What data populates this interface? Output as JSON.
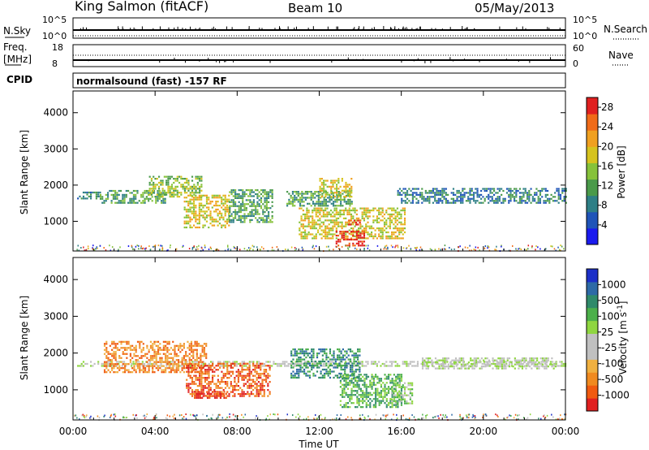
{
  "header": {
    "station": "King Salmon (fitACF)",
    "beam": "Beam 10",
    "date": "05/May/2013"
  },
  "strip_panels": {
    "noise": {
      "left_label": "N.Sky",
      "right_label": "N.Search",
      "left_ticks": [
        "10^5",
        "10^0"
      ],
      "right_ticks": [
        "10^5",
        "10^0"
      ]
    },
    "freq": {
      "left_label_1": "Freq.",
      "left_label_2": "[MHz]",
      "right_label": "Nave",
      "left_ticks": [
        "18",
        "8"
      ],
      "right_ticks": [
        "60",
        "0"
      ]
    },
    "cpid": {
      "label": "CPID",
      "text": "normalsound (fast) -157 RF"
    }
  },
  "x_axis": {
    "label": "Time UT",
    "ticks": [
      "00:00",
      "04:00",
      "08:00",
      "12:00",
      "16:00",
      "20:00",
      "00:00"
    ]
  },
  "chart_data": [
    {
      "type": "heatmap",
      "title": "Power",
      "ylabel": "Slant Range [km]",
      "ylim": [
        180,
        4600
      ],
      "yticks": [
        "1000",
        "2000",
        "3000",
        "4000"
      ],
      "xlim": [
        0,
        24
      ],
      "colorbar": {
        "label": "Power [dB]",
        "ticks": [
          "4",
          "8",
          "12",
          "16",
          "20",
          "24",
          "28"
        ],
        "range": [
          0,
          30
        ],
        "colors": [
          "#1a1aee",
          "#1f54b8",
          "#2e7f86",
          "#4a9a4a",
          "#86c23a",
          "#d6c31e",
          "#f0a020",
          "#f06b18",
          "#e02020"
        ]
      },
      "echo_regions": [
        {
          "t0": 0.2,
          "t1": 1.3,
          "r0": 1600,
          "r1": 1780,
          "level": 2
        },
        {
          "t0": 1.3,
          "t1": 4.5,
          "r0": 1480,
          "r1": 1850,
          "level": 3
        },
        {
          "t0": 3.7,
          "t1": 6.3,
          "r0": 1650,
          "r1": 2250,
          "level": 4
        },
        {
          "t0": 5.4,
          "t1": 7.6,
          "r0": 800,
          "r1": 1700,
          "level": 5
        },
        {
          "t0": 7.6,
          "t1": 9.7,
          "r0": 950,
          "r1": 1850,
          "level": 3
        },
        {
          "t0": 10.4,
          "t1": 13.6,
          "r0": 1400,
          "r1": 1800,
          "level": 3
        },
        {
          "t0": 12.0,
          "t1": 13.6,
          "r0": 1650,
          "r1": 2150,
          "level": 5
        },
        {
          "t0": 11.0,
          "t1": 16.2,
          "r0": 500,
          "r1": 1350,
          "level": 5
        },
        {
          "t0": 12.8,
          "t1": 14.2,
          "r0": 300,
          "r1": 700,
          "level": 8
        },
        {
          "t0": 13.4,
          "t1": 14.0,
          "r0": 880,
          "r1": 1000,
          "level": 8
        },
        {
          "t0": 15.8,
          "t1": 24.0,
          "r0": 1480,
          "r1": 1900,
          "level": 2
        }
      ]
    },
    {
      "type": "heatmap",
      "title": "Velocity",
      "ylabel": "Slant Range [km]",
      "ylim": [
        180,
        4600
      ],
      "yticks": [
        "1000",
        "2000",
        "3000",
        "4000"
      ],
      "xlim": [
        0,
        24
      ],
      "colorbar": {
        "label": "Velocity [m s",
        "label_sup": "-1",
        "label_close": "]",
        "ticks": [
          "1000",
          "500",
          "100",
          "25",
          "-25",
          "-100",
          "-500",
          "-1000"
        ],
        "colors": [
          "#1c30c8",
          "#2d6aa6",
          "#2f8a6a",
          "#4cb04a",
          "#8fd640",
          "#c0c0c0",
          "#c0c0c0",
          "#f0b040",
          "#f08a20",
          "#f05a10",
          "#e02020"
        ]
      },
      "echo_regions": [
        {
          "t0": 0.2,
          "t1": 24.0,
          "r0": 1620,
          "r1": 1760,
          "level": 5
        },
        {
          "t0": 1.5,
          "t1": 6.5,
          "r0": 1450,
          "r1": 2300,
          "level": 8
        },
        {
          "t0": 5.5,
          "t1": 9.6,
          "r0": 800,
          "r1": 1700,
          "level": 9
        },
        {
          "t0": 5.8,
          "t1": 7.5,
          "r0": 750,
          "r1": 950,
          "level": 10
        },
        {
          "t0": 10.6,
          "t1": 14.0,
          "r0": 1300,
          "r1": 2100,
          "level": 2
        },
        {
          "t0": 13.0,
          "t1": 16.0,
          "r0": 500,
          "r1": 1400,
          "level": 3
        },
        {
          "t0": 15.5,
          "t1": 16.5,
          "r0": 600,
          "r1": 1200,
          "level": 4
        },
        {
          "t0": 17.0,
          "t1": 23.5,
          "r0": 1550,
          "r1": 1850,
          "level": 5
        }
      ]
    }
  ]
}
